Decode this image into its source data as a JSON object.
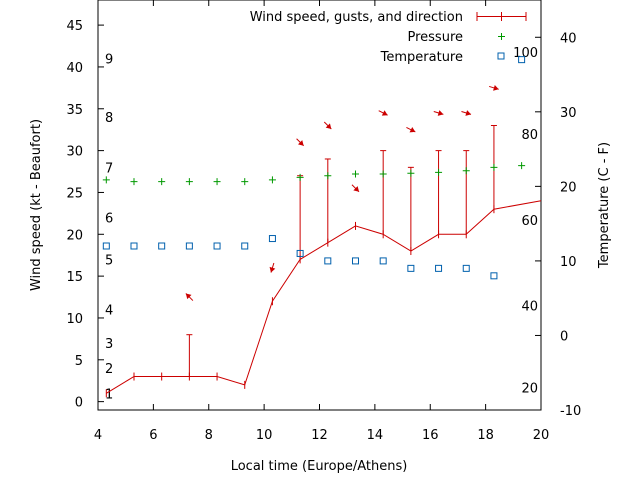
{
  "chart_data": {
    "type": "line",
    "xlabel": "Local time (Europe/Athens)",
    "ylabel": "Wind speed (kt - Beaufort)",
    "y2label": "Temperature (C - F)",
    "xlim": [
      4,
      20
    ],
    "ylim": [
      -1,
      48
    ],
    "y2lim": [
      -10,
      45
    ],
    "x_ticks": [
      4,
      6,
      8,
      10,
      12,
      14,
      16,
      18,
      20
    ],
    "y_ticks": [
      0,
      5,
      10,
      15,
      20,
      25,
      30,
      35,
      40,
      45
    ],
    "y2_ticks": [
      -10,
      0,
      10,
      20,
      30,
      40
    ],
    "beaufort_labels": [
      {
        "label": "1",
        "kt": 1
      },
      {
        "label": "2",
        "kt": 4
      },
      {
        "label": "3",
        "kt": 7
      },
      {
        "label": "4",
        "kt": 11
      },
      {
        "label": "5",
        "kt": 17
      },
      {
        "label": "6",
        "kt": 22
      },
      {
        "label": "7",
        "kt": 28
      },
      {
        "label": "8",
        "kt": 34
      },
      {
        "label": "9",
        "kt": 41
      }
    ],
    "fahrenheit_labels": [
      {
        "label": "20",
        "y2": -7
      },
      {
        "label": "40",
        "y2": 4
      },
      {
        "label": "60",
        "y2": 15.5
      },
      {
        "label": "80",
        "y2": 27
      },
      {
        "label": "100",
        "y2": 38
      }
    ],
    "legend_position": "top-right",
    "series": [
      {
        "name": "Wind speed, gusts, and direction",
        "color": "#cc0000",
        "x": [
          4.3,
          5.3,
          6.3,
          7.3,
          8.3,
          9.3,
          10.3,
          11.3,
          12.3,
          13.3,
          14.3,
          15.3,
          16.3,
          17.3,
          18.3,
          20
        ],
        "values": [
          1,
          3,
          3,
          3,
          3,
          2,
          12,
          17,
          19,
          21,
          20,
          18,
          20,
          20,
          23,
          24
        ],
        "gusts": [
          null,
          null,
          null,
          8,
          null,
          null,
          null,
          27,
          29,
          null,
          30,
          28,
          30,
          30,
          33,
          null
        ],
        "direction_arrows": [
          {
            "x": 7.3,
            "kt": 12.5,
            "dx": -1,
            "dy": -1
          },
          {
            "x": 10.3,
            "kt": 16,
            "dx": -0.3,
            "dy": 1
          },
          {
            "x": 11.3,
            "kt": 31,
            "dx": 1,
            "dy": 1
          },
          {
            "x": 12.3,
            "kt": 33,
            "dx": 1,
            "dy": 1
          },
          {
            "x": 13.3,
            "kt": 25.5,
            "dx": 1,
            "dy": 1
          },
          {
            "x": 14.3,
            "kt": 34.5,
            "dx": 1,
            "dy": 0.5
          },
          {
            "x": 15.3,
            "kt": 32.5,
            "dx": 1,
            "dy": 0.5
          },
          {
            "x": 16.3,
            "kt": 34.5,
            "dx": 1,
            "dy": 0.3
          },
          {
            "x": 17.3,
            "kt": 34.5,
            "dx": 1,
            "dy": 0.3
          },
          {
            "x": 18.3,
            "kt": 37.5,
            "dx": 1,
            "dy": 0.3
          }
        ]
      },
      {
        "name": "Pressure",
        "color": "#009900",
        "x": [
          4.3,
          5.3,
          6.3,
          7.3,
          8.3,
          9.3,
          10.3,
          11.3,
          12.3,
          13.3,
          14.3,
          15.3,
          16.3,
          17.3,
          18.3,
          19.3
        ],
        "values": [
          26.5,
          26.3,
          26.3,
          26.3,
          26.3,
          26.3,
          26.5,
          26.8,
          27,
          27.2,
          27.2,
          27.3,
          27.4,
          27.6,
          28,
          28.2
        ]
      },
      {
        "name": "Temperature",
        "color": "#0060ad",
        "x": [
          4.3,
          5.3,
          6.3,
          7.3,
          8.3,
          9.3,
          10.3,
          11.3,
          12.3,
          13.3,
          14.3,
          15.3,
          16.3,
          17.3,
          18.3,
          19.3
        ],
        "values_c": [
          12,
          12,
          12,
          12,
          12,
          12,
          13,
          11,
          10,
          10,
          10,
          9,
          9,
          9,
          8,
          37
        ]
      }
    ]
  }
}
